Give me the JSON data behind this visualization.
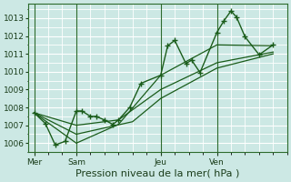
{
  "title": "Pression niveau de la mer( hPa )",
  "bg_color": "#cce8e4",
  "grid_color": "#ffffff",
  "line_color": "#1a5c1a",
  "ylim": [
    1005.5,
    1013.8
  ],
  "yticks": [
    1006,
    1007,
    1008,
    1009,
    1010,
    1011,
    1012,
    1013
  ],
  "day_labels": [
    "Mer",
    "Sam",
    "Jeu",
    "Ven"
  ],
  "day_positions": [
    0.0,
    1.5,
    4.5,
    6.5
  ],
  "xlim": [
    -0.2,
    9.0
  ],
  "series": [
    [
      0.0,
      1007.7,
      0.4,
      1007.1,
      0.75,
      1005.9,
      1.1,
      1006.1,
      1.5,
      1007.8,
      1.7,
      1007.8,
      2.0,
      1007.5,
      2.2,
      1007.5,
      2.5,
      1007.3,
      2.8,
      1007.05,
      3.0,
      1007.3,
      3.4,
      1008.0,
      3.8,
      1009.35,
      4.5,
      1009.8,
      4.75,
      1011.45,
      5.0,
      1011.75,
      5.4,
      1010.45,
      5.6,
      1010.65,
      5.9,
      1009.95,
      6.5,
      1012.2,
      6.75,
      1012.85,
      7.0,
      1013.4,
      7.2,
      1013.05,
      7.5,
      1011.95,
      8.0,
      1010.95,
      8.5,
      1011.5
    ],
    [
      0.0,
      1007.7,
      1.5,
      1006.0,
      3.0,
      1007.05,
      4.5,
      1009.8,
      6.5,
      1011.5,
      8.5,
      1011.45
    ],
    [
      0.0,
      1007.7,
      1.5,
      1007.0,
      3.0,
      1007.3,
      4.5,
      1009.0,
      6.5,
      1010.5,
      8.5,
      1011.1
    ],
    [
      0.0,
      1007.7,
      1.5,
      1006.5,
      3.5,
      1007.2,
      4.5,
      1008.5,
      6.5,
      1010.2,
      8.5,
      1011.0
    ]
  ],
  "vline_positions": [
    0.0,
    1.5,
    4.5,
    6.5
  ],
  "tick_fontsize": 6.5,
  "xlabel_fontsize": 8.0
}
